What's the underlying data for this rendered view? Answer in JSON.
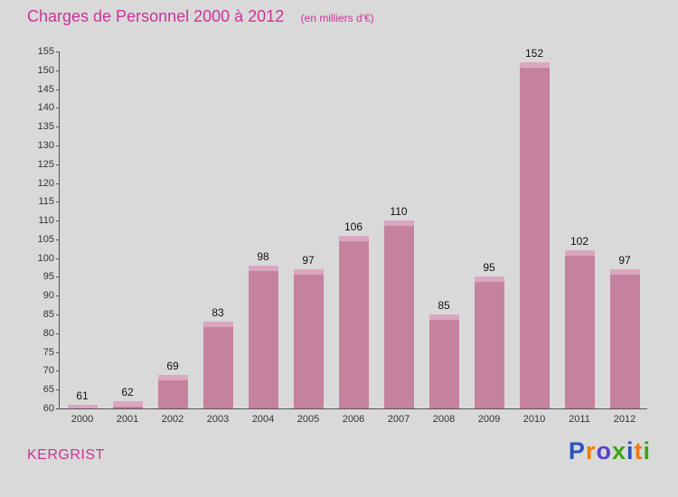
{
  "header": {
    "title": "Charges de Personnel 2000 à 2012",
    "subtitle": "(en milliers d'€)"
  },
  "chart_data": {
    "type": "bar",
    "categories": [
      "2000",
      "2001",
      "2002",
      "2003",
      "2004",
      "2005",
      "2006",
      "2007",
      "2008",
      "2009",
      "2010",
      "2011",
      "2012"
    ],
    "values": [
      61,
      62,
      69,
      83,
      98,
      97,
      106,
      110,
      85,
      95,
      152,
      102,
      97
    ],
    "title": "Charges de Personnel 2000 à 2012",
    "subtitle": "(en milliers d'€)",
    "xlabel": "",
    "ylabel": "",
    "ylim": [
      60,
      155
    ],
    "ytick_step": 5,
    "grid": false,
    "legend": "none",
    "bar_color": "#c5829f",
    "bar_highlight_color": "#dba6c0"
  },
  "footer": {
    "location": "KERGRIST",
    "logo_letters": [
      {
        "ch": "P",
        "color": "#2a52c0"
      },
      {
        "ch": "r",
        "color": "#ef7a10"
      },
      {
        "ch": "o",
        "color": "#5a42c8"
      },
      {
        "ch": "x",
        "color": "#3aa614"
      },
      {
        "ch": "i",
        "color": "#2a52c0"
      },
      {
        "ch": "t",
        "color": "#ef7a10"
      },
      {
        "ch": "i",
        "color": "#3aa614"
      }
    ]
  },
  "colors": {
    "background": "#d9d9d9",
    "accent": "#cc3399",
    "axis": "#555555",
    "tick_text": "#333333",
    "value_text": "#111111"
  }
}
